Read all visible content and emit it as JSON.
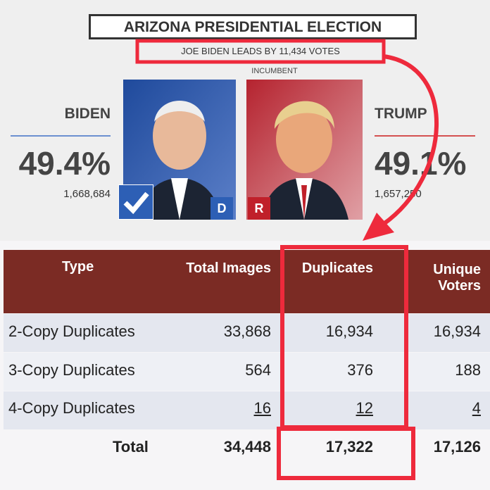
{
  "header": {
    "title": "ARIZONA PRESIDENTIAL ELECTION",
    "subtitle": "JOE BIDEN LEADS BY 11,434 VOTES",
    "incumbent_label": "INCUMBENT"
  },
  "candidates": [
    {
      "name": "BIDEN",
      "percent": "49.4%",
      "votes": "1,668,684",
      "party": "D"
    },
    {
      "name": "TRUMP",
      "percent": "49.1%",
      "votes": "1,657,250",
      "party": "R"
    }
  ],
  "table": {
    "headers": [
      "Type",
      "Total Images",
      "Duplicates",
      "Unique Voters"
    ],
    "rows": [
      [
        "2-Copy Duplicates",
        "33,868",
        "16,934",
        "16,934"
      ],
      [
        "3-Copy Duplicates",
        "564",
        "376",
        "188"
      ],
      [
        "4-Copy Duplicates",
        "16",
        "12",
        "4"
      ],
      [
        "Total",
        "34,448",
        "17,322",
        "17,126"
      ]
    ]
  }
}
